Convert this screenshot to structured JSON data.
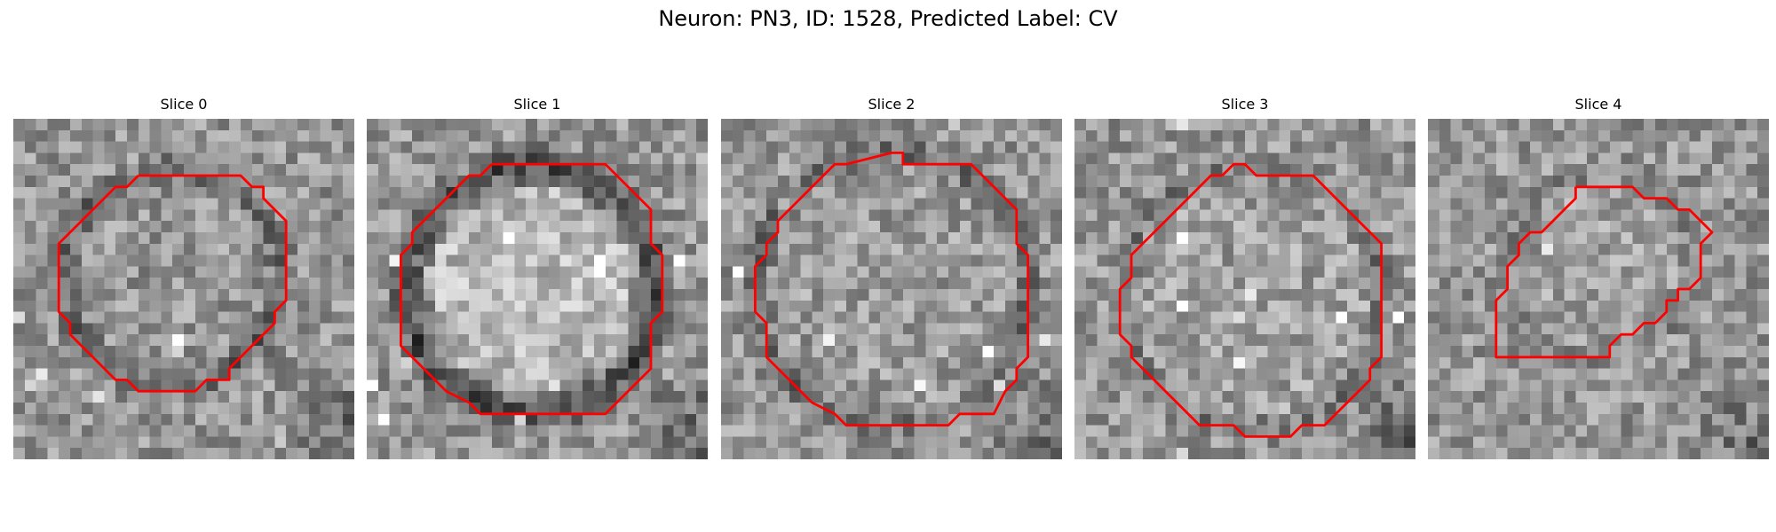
{
  "figure": {
    "title": "Neuron: PN3, ID: 1528, Predicted Label: CV"
  },
  "panels": [
    {
      "title": "Slice 0"
    },
    {
      "title": "Slice 1"
    },
    {
      "title": "Slice 2"
    },
    {
      "title": "Slice 3"
    },
    {
      "title": "Slice 4"
    }
  ],
  "style": {
    "contour_color": "#ff0000",
    "colormap": "grayscale"
  }
}
